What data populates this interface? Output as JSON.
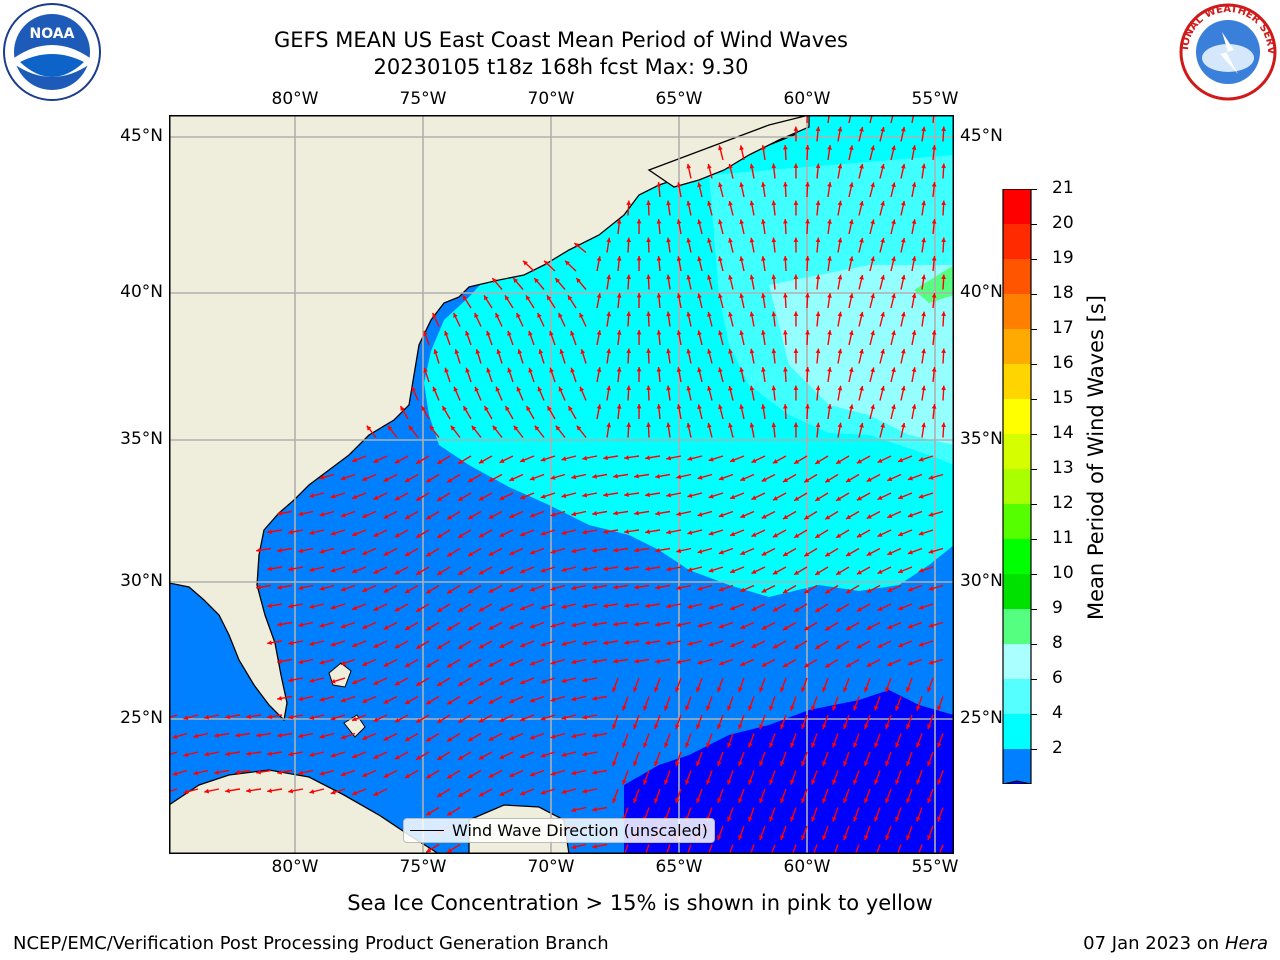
{
  "title": {
    "line1": "GEFS MEAN US East Coast Mean Period of Wind Waves",
    "line2": "20230105 t18z 168h fcst   Max: 9.30"
  },
  "logos": {
    "left": {
      "name": "noaa-logo",
      "text": "NOAA"
    },
    "right": {
      "name": "nws-logo",
      "text": "NATIONAL WEATHER SERVICE"
    }
  },
  "map": {
    "lon_labels": [
      "80°W",
      "75°W",
      "70°W",
      "65°W",
      "60°W",
      "55°W"
    ],
    "lat_labels": [
      "45°N",
      "40°N",
      "35°N",
      "30°N",
      "25°N"
    ],
    "colors": {
      "land": "#efeedd",
      "grid": "#b0b0b0",
      "arrow": "#ff0000",
      "coast": "#000000"
    },
    "legend": {
      "label": "Wind Wave Direction (unscaled)"
    }
  },
  "colorbar": {
    "label": "Mean Period of Wind Waves [s]",
    "ticks": [
      "21",
      "20",
      "19",
      "18",
      "17",
      "16",
      "15",
      "14",
      "13",
      "12",
      "11",
      "10",
      "9",
      "8",
      "6",
      "4",
      "2"
    ],
    "colors": [
      "#ff0000",
      "#ff2a00",
      "#ff5500",
      "#ff8000",
      "#ffaa00",
      "#ffd500",
      "#ffff00",
      "#d5ff00",
      "#aaff00",
      "#55ff00",
      "#00ff00",
      "#00e100",
      "#55ff80",
      "#aaffff",
      "#55ffff",
      "#00ffff",
      "#0080ff"
    ],
    "under_color": "#0000ff"
  },
  "notes": {
    "sea_ice": "Sea Ice Concentration > 15% is shown in pink to yellow",
    "branch": "NCEP/EMC/Verification Post Processing Product Generation Branch",
    "date": "07 Jan 2023 on",
    "host": "Hera"
  }
}
